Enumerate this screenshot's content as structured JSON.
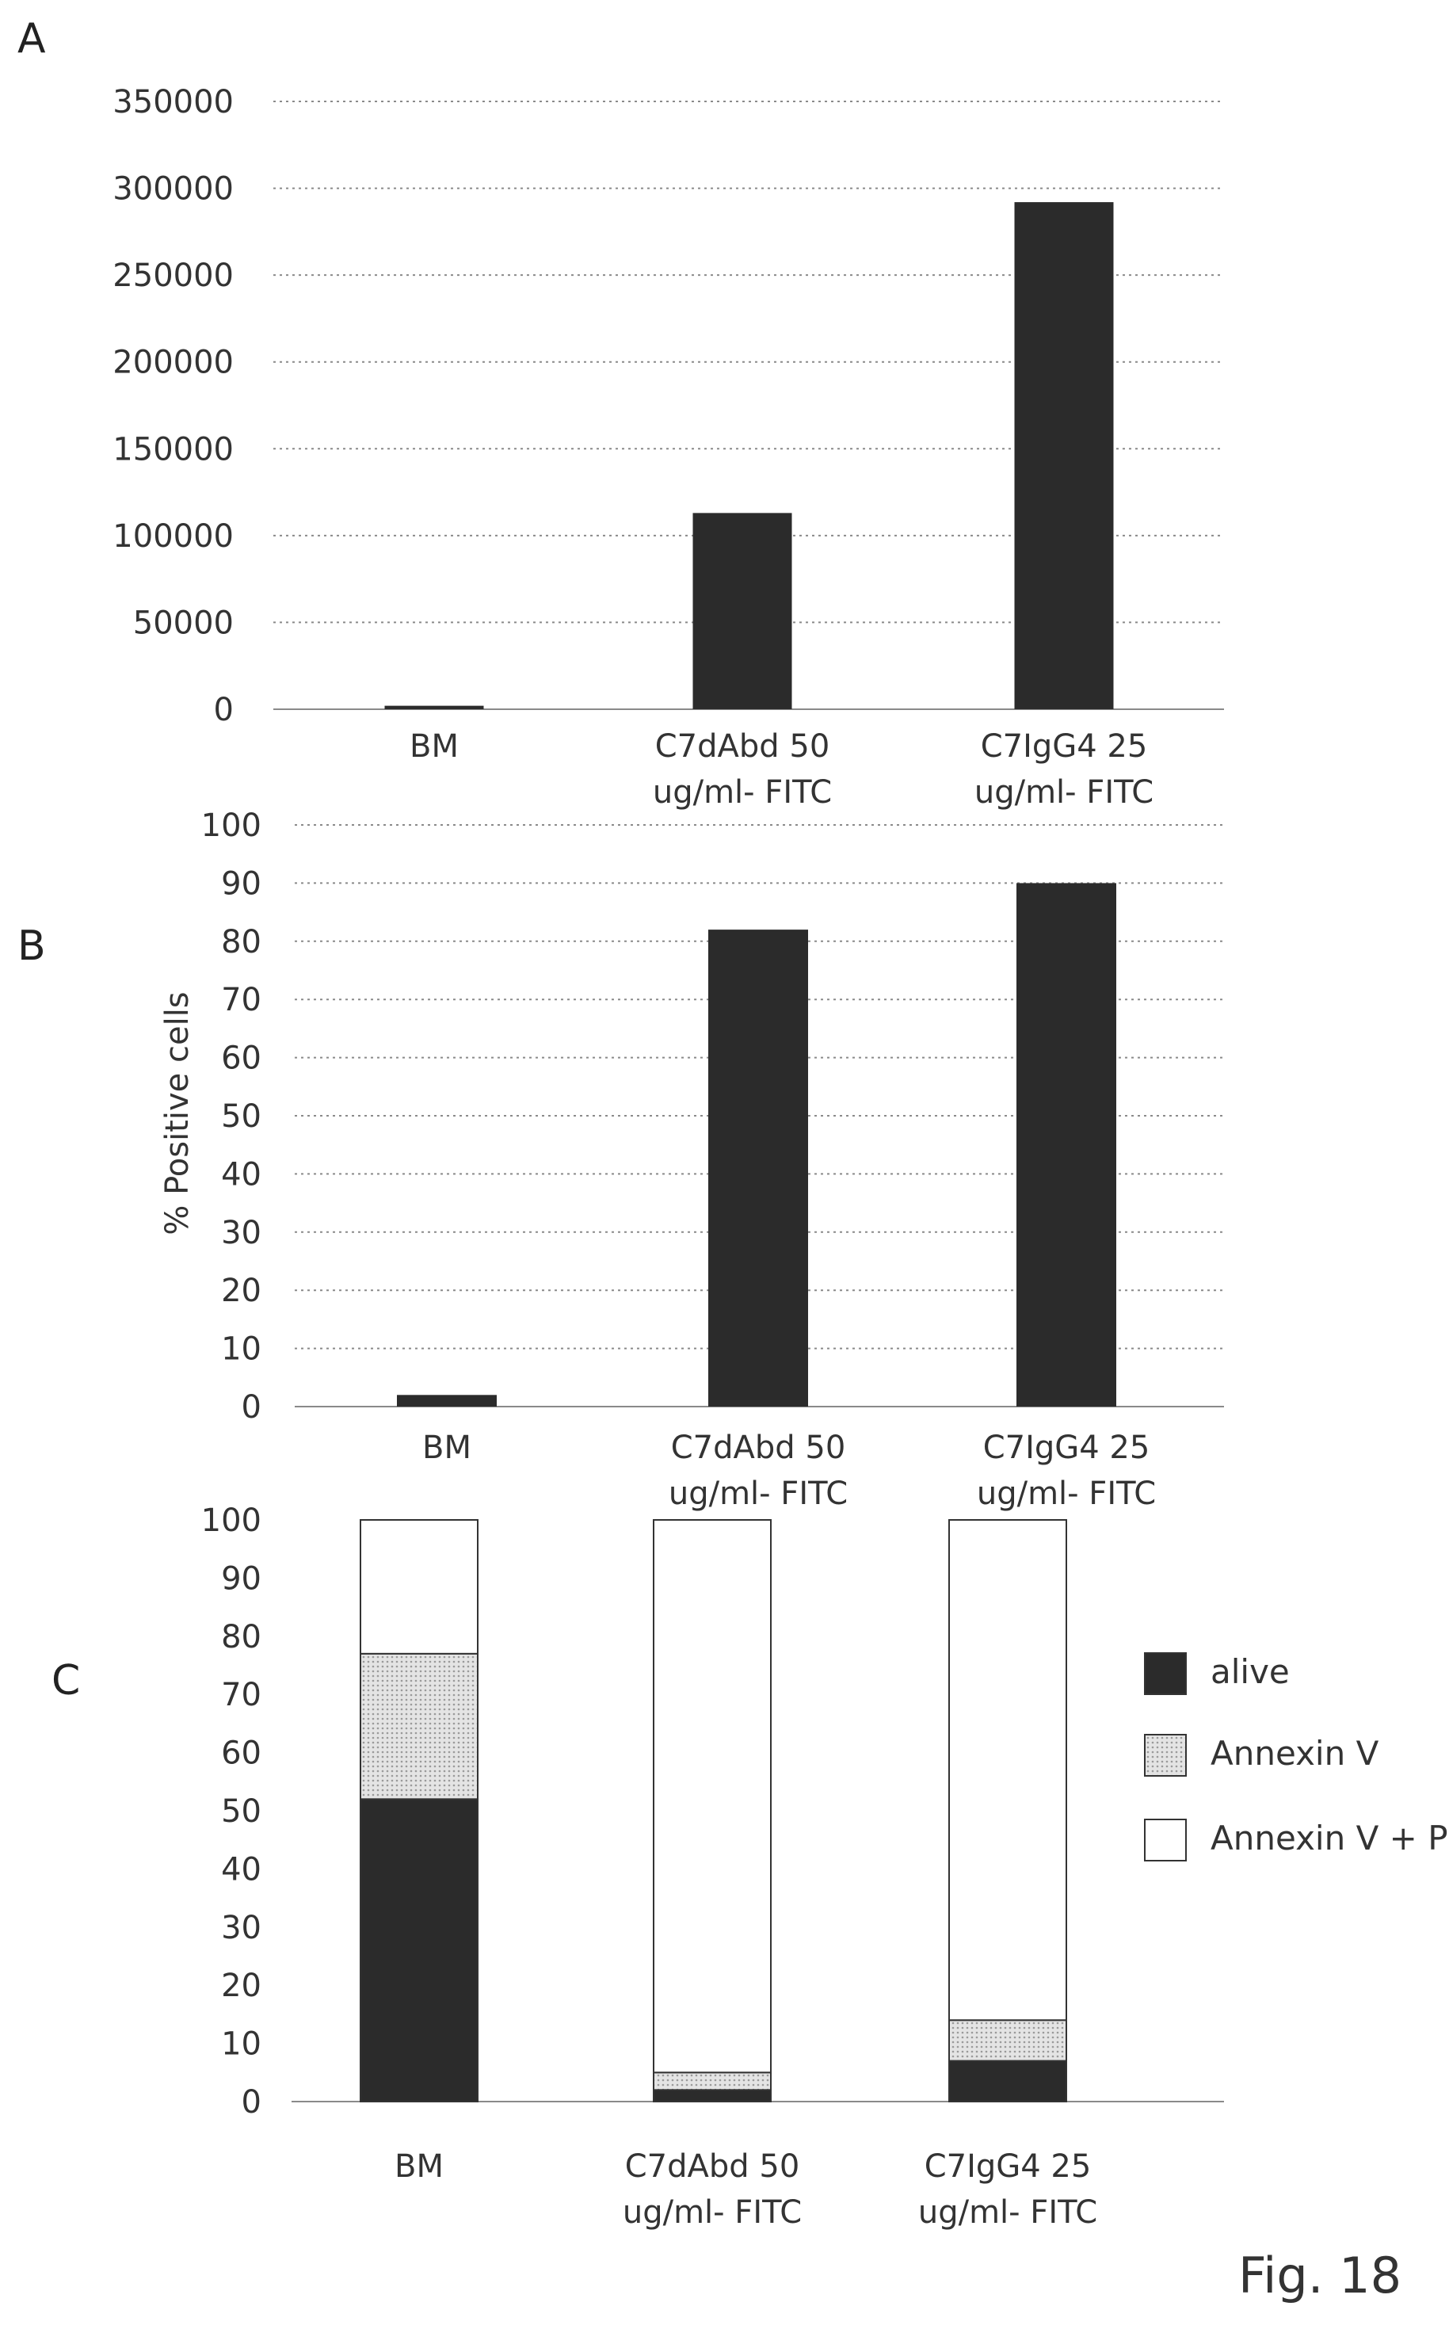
{
  "colors": {
    "bar": "#2b2b2b",
    "alive": "#2b2b2b",
    "annexin": "#cfcfcf",
    "annexin_pi": "#ffffff"
  },
  "figure_label": "Fig. 18",
  "chart_data": [
    {
      "panel": "A",
      "type": "bar",
      "categories": [
        [
          "BM"
        ],
        [
          "C7dAbd 50",
          "ug/ml- FITC"
        ],
        [
          "C7IgG4 25",
          "ug/ml- FITC"
        ]
      ],
      "values": [
        2000,
        113000,
        292000
      ],
      "title": "",
      "xlabel": "",
      "ylabel": "",
      "ylim": [
        0,
        350000
      ],
      "yticks": [
        "0",
        "50000",
        "100000",
        "150000",
        "200000",
        "250000",
        "300000",
        "350000"
      ],
      "grid": true
    },
    {
      "panel": "B",
      "type": "bar",
      "categories": [
        [
          "BM"
        ],
        [
          "C7dAbd 50",
          "ug/ml- FITC"
        ],
        [
          "C7IgG4 25",
          "ug/ml- FITC"
        ]
      ],
      "values": [
        2,
        82,
        90
      ],
      "title": "",
      "xlabel": "",
      "ylabel": "% Positive cells",
      "ylim": [
        0,
        100
      ],
      "yticks": [
        "0",
        "10",
        "20",
        "30",
        "40",
        "50",
        "60",
        "70",
        "80",
        "90",
        "100"
      ],
      "grid": true
    },
    {
      "panel": "C",
      "type": "bar",
      "stacked": true,
      "categories": [
        [
          "BM"
        ],
        [
          "C7dAbd 50",
          "ug/ml- FITC"
        ],
        [
          "C7IgG4 25",
          "ug/ml- FITC"
        ]
      ],
      "series": [
        {
          "name": "alive",
          "values": [
            52,
            2,
            7
          ]
        },
        {
          "name": "Annexin V",
          "values": [
            25,
            3,
            7
          ]
        },
        {
          "name": "Annexin V + PI",
          "values": [
            23,
            95,
            86
          ]
        }
      ],
      "title": "",
      "xlabel": "",
      "ylabel": "",
      "ylim": [
        0,
        100
      ],
      "yticks": [
        "0",
        "10",
        "20",
        "30",
        "40",
        "50",
        "60",
        "70",
        "80",
        "90",
        "100"
      ],
      "grid": false,
      "legend_position": "right"
    }
  ]
}
